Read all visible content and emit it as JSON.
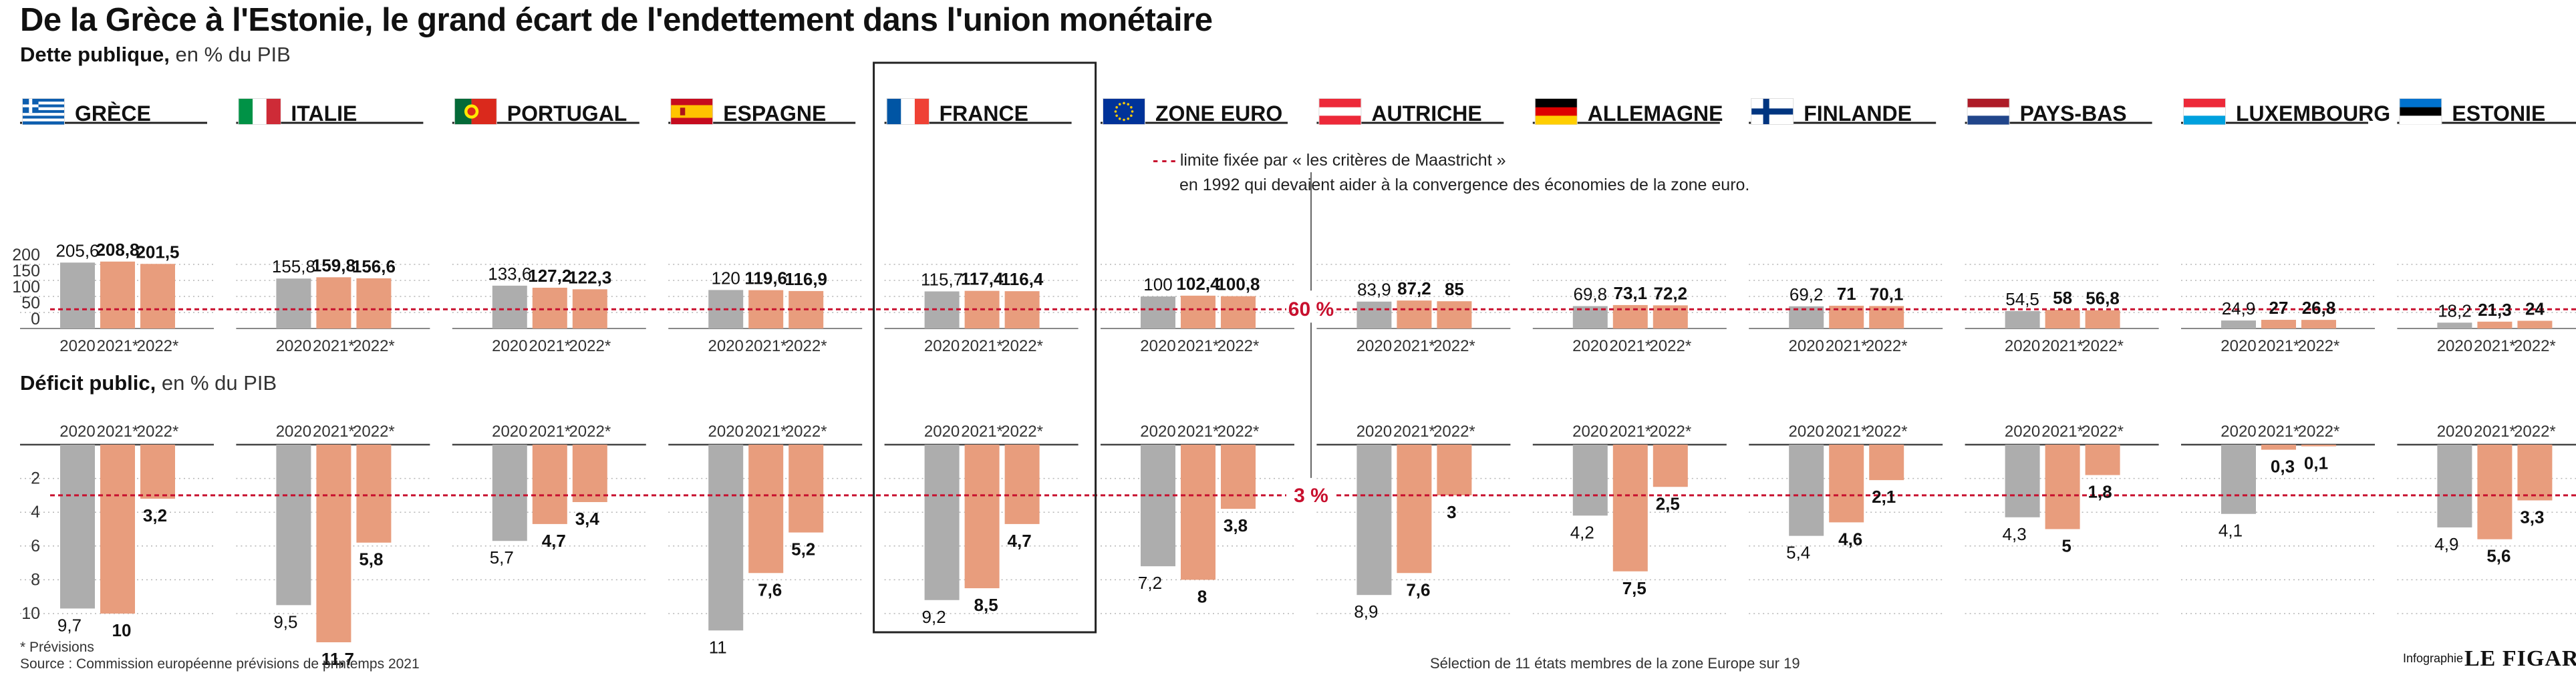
{
  "title": "De la Grèce à l'Estonie, le grand écart de l'endettement dans l'union monétaire",
  "debt_section": {
    "label": "Dette publique,",
    "unit": "en % du PIB"
  },
  "deficit_section": {
    "label": "Déficit public,",
    "unit": "en % du PIB"
  },
  "maastricht_note": {
    "line1": "limite fixée par « les critères de Maastricht »",
    "line2": "en 1992 qui devaient aider à la convergence des économies de la zone euro."
  },
  "threshold_labels": {
    "debt": "60 %",
    "deficit": "3 %"
  },
  "years": [
    "2020",
    "2021*",
    "2022*"
  ],
  "footnote": "* Prévisions",
  "source": "Source : Commission européenne prévisions de printemps 2021",
  "selection_note": "Sélection de 11 états membres de la zone Europe sur 19",
  "credit": "Infographie",
  "brand": "LE FIGARO",
  "colors": {
    "actual": "#adadad",
    "forecast": "#e89d7d",
    "threshold": "#c8102e",
    "grid": "#b5b5b5",
    "frame": "#222222"
  },
  "chart_data": [
    {
      "type": "bar",
      "title": "Dette publique",
      "unit": "en % du PIB",
      "categories": [
        "2020",
        "2021*",
        "2022*"
      ],
      "ylim": [
        0,
        220
      ],
      "yticks": [
        0,
        50,
        100,
        150,
        200
      ],
      "threshold": 60,
      "threshold_label": "60 %",
      "highlighted_panel": "FRANCE",
      "panels": [
        {
          "name": "GRÈCE",
          "flag": "greece-flag",
          "values": [
            205.6,
            208.8,
            201.5
          ]
        },
        {
          "name": "ITALIE",
          "flag": "italy-flag",
          "values": [
            155.8,
            159.8,
            156.6
          ]
        },
        {
          "name": "PORTUGAL",
          "flag": "portugal-flag",
          "values": [
            133.6,
            127.2,
            122.3
          ]
        },
        {
          "name": "ESPAGNE",
          "flag": "spain-flag",
          "values": [
            120,
            119.6,
            116.9
          ]
        },
        {
          "name": "FRANCE",
          "flag": "france-flag",
          "values": [
            115.7,
            117.4,
            116.4
          ]
        },
        {
          "name": "ZONE EURO",
          "flag": "eu-flag",
          "values": [
            100,
            102.4,
            100.8
          ]
        },
        {
          "name": "AUTRICHE",
          "flag": "austria-flag",
          "values": [
            83.9,
            87.2,
            85
          ]
        },
        {
          "name": "ALLEMAGNE",
          "flag": "germany-flag",
          "values": [
            69.8,
            73.1,
            72.2
          ]
        },
        {
          "name": "FINLANDE",
          "flag": "finland-flag",
          "values": [
            69.2,
            71,
            70.1
          ]
        },
        {
          "name": "PAYS-BAS",
          "flag": "netherlands-flag",
          "values": [
            54.5,
            58,
            56.8
          ]
        },
        {
          "name": "LUXEMBOURG",
          "flag": "luxembourg-flag",
          "values": [
            24.9,
            27,
            26.8
          ]
        },
        {
          "name": "ESTONIE",
          "flag": "estonia-flag",
          "values": [
            18.2,
            21.3,
            24
          ]
        }
      ]
    },
    {
      "type": "bar",
      "title": "Déficit public",
      "unit": "en % du PIB",
      "categories": [
        "2020",
        "2021*",
        "2022*"
      ],
      "ylim": [
        0,
        12
      ],
      "yticks": [
        2,
        4,
        6,
        8,
        10
      ],
      "orientation": "downward",
      "threshold": 3,
      "threshold_label": "3 %",
      "panels": [
        {
          "name": "GRÈCE",
          "values": [
            9.7,
            10,
            3.2
          ]
        },
        {
          "name": "ITALIE",
          "values": [
            9.5,
            11.7,
            5.8
          ]
        },
        {
          "name": "PORTUGAL",
          "values": [
            5.7,
            4.7,
            3.4
          ]
        },
        {
          "name": "ESPAGNE",
          "values": [
            11,
            7.6,
            5.2
          ]
        },
        {
          "name": "FRANCE",
          "values": [
            9.2,
            8.5,
            4.7
          ]
        },
        {
          "name": "ZONE EURO",
          "values": [
            7.2,
            8,
            3.8
          ]
        },
        {
          "name": "AUTRICHE",
          "values": [
            8.9,
            7.6,
            3
          ]
        },
        {
          "name": "ALLEMAGNE",
          "values": [
            4.2,
            7.5,
            2.5
          ]
        },
        {
          "name": "FINLANDE",
          "values": [
            5.4,
            4.6,
            2.1
          ]
        },
        {
          "name": "PAYS-BAS",
          "values": [
            4.3,
            5,
            1.8
          ]
        },
        {
          "name": "LUXEMBOURG",
          "values": [
            4.1,
            0.3,
            0.1
          ]
        },
        {
          "name": "ESTONIE",
          "values": [
            4.9,
            5.6,
            3.3
          ]
        }
      ]
    }
  ]
}
